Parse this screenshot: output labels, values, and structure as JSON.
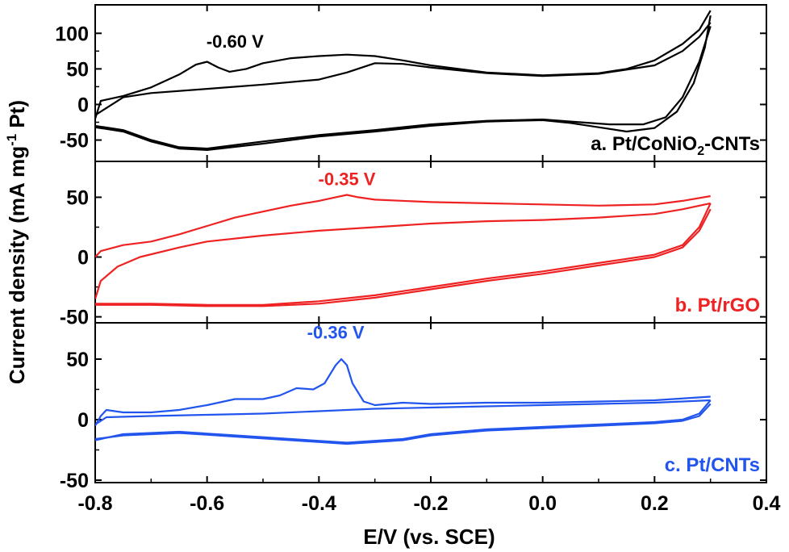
{
  "chart_data": {
    "type": "line",
    "xlabel": "E/V (vs. SCE)",
    "ylabel": "Current density (mA mg-1 Pt)",
    "ylabel_parts": {
      "main": "Current density (mA mg",
      "sup": "-1",
      "end": " Pt)"
    },
    "xlim": [
      -0.8,
      0.4
    ],
    "x_ticks": [
      -0.8,
      -0.6,
      -0.4,
      -0.2,
      0.0,
      0.2,
      0.4
    ],
    "x_tick_labels": [
      "-0.8",
      "-0.6",
      "-0.4",
      "-0.2",
      "0.0",
      "0.2",
      "0.4"
    ],
    "panels": [
      {
        "id": "a",
        "label": "a. Pt/CoNiO2-CNTs",
        "label_parts": {
          "main": "a. Pt/CoNiO",
          "sub": "2",
          "end": "-CNTs"
        },
        "color": "#000000",
        "ylim": [
          -80,
          140
        ],
        "y_ticks": [
          -50,
          0,
          50,
          100
        ],
        "y_tick_labels": [
          "-50",
          "0",
          "50",
          "100"
        ],
        "peak_label": "-0.60 V",
        "peak_label_pos": [
          -0.55,
          80
        ],
        "forward": [
          [
            -0.8,
            -20
          ],
          [
            -0.79,
            5
          ],
          [
            -0.75,
            12
          ],
          [
            -0.7,
            24
          ],
          [
            -0.65,
            42
          ],
          [
            -0.62,
            56
          ],
          [
            -0.6,
            60
          ],
          [
            -0.58,
            52
          ],
          [
            -0.56,
            46
          ],
          [
            -0.53,
            50
          ],
          [
            -0.5,
            58
          ],
          [
            -0.45,
            65
          ],
          [
            -0.4,
            68
          ],
          [
            -0.35,
            70
          ],
          [
            -0.3,
            68
          ],
          [
            -0.25,
            62
          ],
          [
            -0.2,
            55
          ],
          [
            -0.1,
            45
          ],
          [
            0.0,
            41
          ],
          [
            0.1,
            44
          ],
          [
            0.15,
            50
          ],
          [
            0.2,
            62
          ],
          [
            0.25,
            85
          ],
          [
            0.28,
            105
          ],
          [
            0.3,
            132
          ]
        ],
        "forward2": [
          [
            -0.8,
            -15
          ],
          [
            -0.75,
            10
          ],
          [
            -0.7,
            16
          ],
          [
            -0.6,
            22
          ],
          [
            -0.5,
            28
          ],
          [
            -0.4,
            35
          ],
          [
            -0.35,
            45
          ],
          [
            -0.3,
            58
          ],
          [
            -0.25,
            57
          ],
          [
            -0.2,
            52
          ],
          [
            -0.1,
            44
          ],
          [
            0.0,
            40
          ],
          [
            0.1,
            43
          ],
          [
            0.2,
            55
          ],
          [
            0.25,
            75
          ],
          [
            0.28,
            95
          ],
          [
            0.3,
            115
          ]
        ],
        "reverse": [
          [
            0.3,
            125
          ],
          [
            0.29,
            80
          ],
          [
            0.27,
            30
          ],
          [
            0.24,
            -10
          ],
          [
            0.2,
            -33
          ],
          [
            0.15,
            -38
          ],
          [
            0.1,
            -32
          ],
          [
            0.05,
            -26
          ],
          [
            0.0,
            -22
          ],
          [
            -0.1,
            -24
          ],
          [
            -0.2,
            -30
          ],
          [
            -0.3,
            -38
          ],
          [
            -0.4,
            -45
          ],
          [
            -0.5,
            -55
          ],
          [
            -0.6,
            -64
          ],
          [
            -0.65,
            -62
          ],
          [
            -0.7,
            -52
          ],
          [
            -0.75,
            -38
          ],
          [
            -0.8,
            -32
          ]
        ],
        "reverse2": [
          [
            0.3,
            110
          ],
          [
            0.28,
            60
          ],
          [
            0.25,
            10
          ],
          [
            0.22,
            -18
          ],
          [
            0.18,
            -28
          ],
          [
            0.12,
            -28
          ],
          [
            0.05,
            -24
          ],
          [
            0.0,
            -21
          ],
          [
            -0.1,
            -23
          ],
          [
            -0.2,
            -28
          ],
          [
            -0.3,
            -36
          ],
          [
            -0.4,
            -43
          ],
          [
            -0.5,
            -52
          ],
          [
            -0.6,
            -62
          ],
          [
            -0.65,
            -60
          ],
          [
            -0.7,
            -50
          ],
          [
            -0.75,
            -36
          ],
          [
            -0.8,
            -30
          ]
        ]
      },
      {
        "id": "b",
        "label": "b. Pt/rGO",
        "color": "#ee2222",
        "ylim": [
          -55,
          80
        ],
        "y_ticks": [
          -50,
          0,
          50
        ],
        "y_tick_labels": [
          "-50",
          "0",
          "50"
        ],
        "peak_label": "-0.35 V",
        "peak_label_pos": [
          -0.35,
          60
        ],
        "forward": [
          [
            -0.8,
            0
          ],
          [
            -0.79,
            5
          ],
          [
            -0.75,
            10
          ],
          [
            -0.7,
            13
          ],
          [
            -0.65,
            19
          ],
          [
            -0.6,
            26
          ],
          [
            -0.55,
            33
          ],
          [
            -0.5,
            38
          ],
          [
            -0.45,
            43
          ],
          [
            -0.4,
            47
          ],
          [
            -0.37,
            50
          ],
          [
            -0.35,
            52
          ],
          [
            -0.33,
            50
          ],
          [
            -0.3,
            48
          ],
          [
            -0.2,
            46
          ],
          [
            -0.1,
            45
          ],
          [
            0.0,
            44
          ],
          [
            0.1,
            43
          ],
          [
            0.2,
            44
          ],
          [
            0.25,
            47
          ],
          [
            0.3,
            51
          ]
        ],
        "forward2": [
          [
            -0.8,
            -35
          ],
          [
            -0.79,
            -20
          ],
          [
            -0.76,
            -8
          ],
          [
            -0.72,
            0
          ],
          [
            -0.65,
            8
          ],
          [
            -0.6,
            13
          ],
          [
            -0.5,
            18
          ],
          [
            -0.4,
            22
          ],
          [
            -0.3,
            25
          ],
          [
            -0.2,
            28
          ],
          [
            -0.1,
            30
          ],
          [
            0.0,
            31
          ],
          [
            0.1,
            33
          ],
          [
            0.2,
            36
          ],
          [
            0.25,
            40
          ],
          [
            0.3,
            45
          ]
        ],
        "reverse": [
          [
            0.3,
            45
          ],
          [
            0.28,
            25
          ],
          [
            0.25,
            10
          ],
          [
            0.2,
            2
          ],
          [
            0.1,
            -5
          ],
          [
            0.0,
            -12
          ],
          [
            -0.1,
            -18
          ],
          [
            -0.2,
            -25
          ],
          [
            -0.3,
            -32
          ],
          [
            -0.4,
            -37
          ],
          [
            -0.5,
            -40
          ],
          [
            -0.6,
            -40
          ],
          [
            -0.7,
            -39
          ],
          [
            -0.8,
            -39
          ]
        ],
        "reverse2": [
          [
            0.3,
            40
          ],
          [
            0.28,
            22
          ],
          [
            0.25,
            8
          ],
          [
            0.2,
            0
          ],
          [
            0.1,
            -7
          ],
          [
            0.0,
            -14
          ],
          [
            -0.1,
            -20
          ],
          [
            -0.2,
            -27
          ],
          [
            -0.3,
            -34
          ],
          [
            -0.4,
            -39
          ],
          [
            -0.5,
            -41
          ],
          [
            -0.6,
            -41
          ],
          [
            -0.7,
            -40
          ],
          [
            -0.8,
            -40
          ]
        ]
      },
      {
        "id": "c",
        "label": "c. Pt/CNTs",
        "color": "#2255ee",
        "ylim": [
          -52,
          80
        ],
        "y_ticks": [
          -50,
          0,
          50
        ],
        "y_tick_labels": [
          "-50",
          "0",
          "50"
        ],
        "peak_label": "-0.36 V",
        "peak_label_pos": [
          -0.37,
          67
        ],
        "forward": [
          [
            -0.8,
            -5
          ],
          [
            -0.79,
            3
          ],
          [
            -0.78,
            8
          ],
          [
            -0.75,
            6
          ],
          [
            -0.7,
            6
          ],
          [
            -0.65,
            8
          ],
          [
            -0.6,
            12
          ],
          [
            -0.55,
            17
          ],
          [
            -0.5,
            17
          ],
          [
            -0.47,
            20
          ],
          [
            -0.44,
            26
          ],
          [
            -0.41,
            25
          ],
          [
            -0.39,
            30
          ],
          [
            -0.37,
            45
          ],
          [
            -0.36,
            50
          ],
          [
            -0.35,
            45
          ],
          [
            -0.34,
            30
          ],
          [
            -0.32,
            15
          ],
          [
            -0.3,
            12
          ],
          [
            -0.25,
            14
          ],
          [
            -0.2,
            13
          ],
          [
            -0.1,
            14
          ],
          [
            0.0,
            14
          ],
          [
            0.1,
            15
          ],
          [
            0.2,
            16
          ],
          [
            0.3,
            19
          ]
        ],
        "forward2": [
          [
            -0.8,
            -4
          ],
          [
            -0.78,
            2
          ],
          [
            -0.7,
            3
          ],
          [
            -0.6,
            4
          ],
          [
            -0.5,
            5
          ],
          [
            -0.4,
            7
          ],
          [
            -0.3,
            9
          ],
          [
            -0.2,
            10
          ],
          [
            -0.1,
            11
          ],
          [
            0.0,
            12
          ],
          [
            0.1,
            13
          ],
          [
            0.2,
            14
          ],
          [
            0.3,
            16
          ]
        ],
        "reverse": [
          [
            0.3,
            16
          ],
          [
            0.28,
            5
          ],
          [
            0.25,
            0
          ],
          [
            0.2,
            -2
          ],
          [
            0.1,
            -4
          ],
          [
            0.0,
            -6
          ],
          [
            -0.1,
            -8
          ],
          [
            -0.2,
            -12
          ],
          [
            -0.25,
            -16
          ],
          [
            -0.35,
            -19
          ],
          [
            -0.45,
            -16
          ],
          [
            -0.55,
            -13
          ],
          [
            -0.65,
            -10
          ],
          [
            -0.75,
            -12
          ],
          [
            -0.8,
            -17
          ]
        ],
        "reverse2": [
          [
            0.3,
            13
          ],
          [
            0.28,
            3
          ],
          [
            0.25,
            -1
          ],
          [
            0.2,
            -3
          ],
          [
            0.1,
            -5
          ],
          [
            0.0,
            -7
          ],
          [
            -0.1,
            -9
          ],
          [
            -0.2,
            -13
          ],
          [
            -0.25,
            -17
          ],
          [
            -0.35,
            -20
          ],
          [
            -0.45,
            -17
          ],
          [
            -0.55,
            -14
          ],
          [
            -0.65,
            -11
          ],
          [
            -0.75,
            -13
          ],
          [
            -0.8,
            -16
          ]
        ]
      }
    ]
  }
}
